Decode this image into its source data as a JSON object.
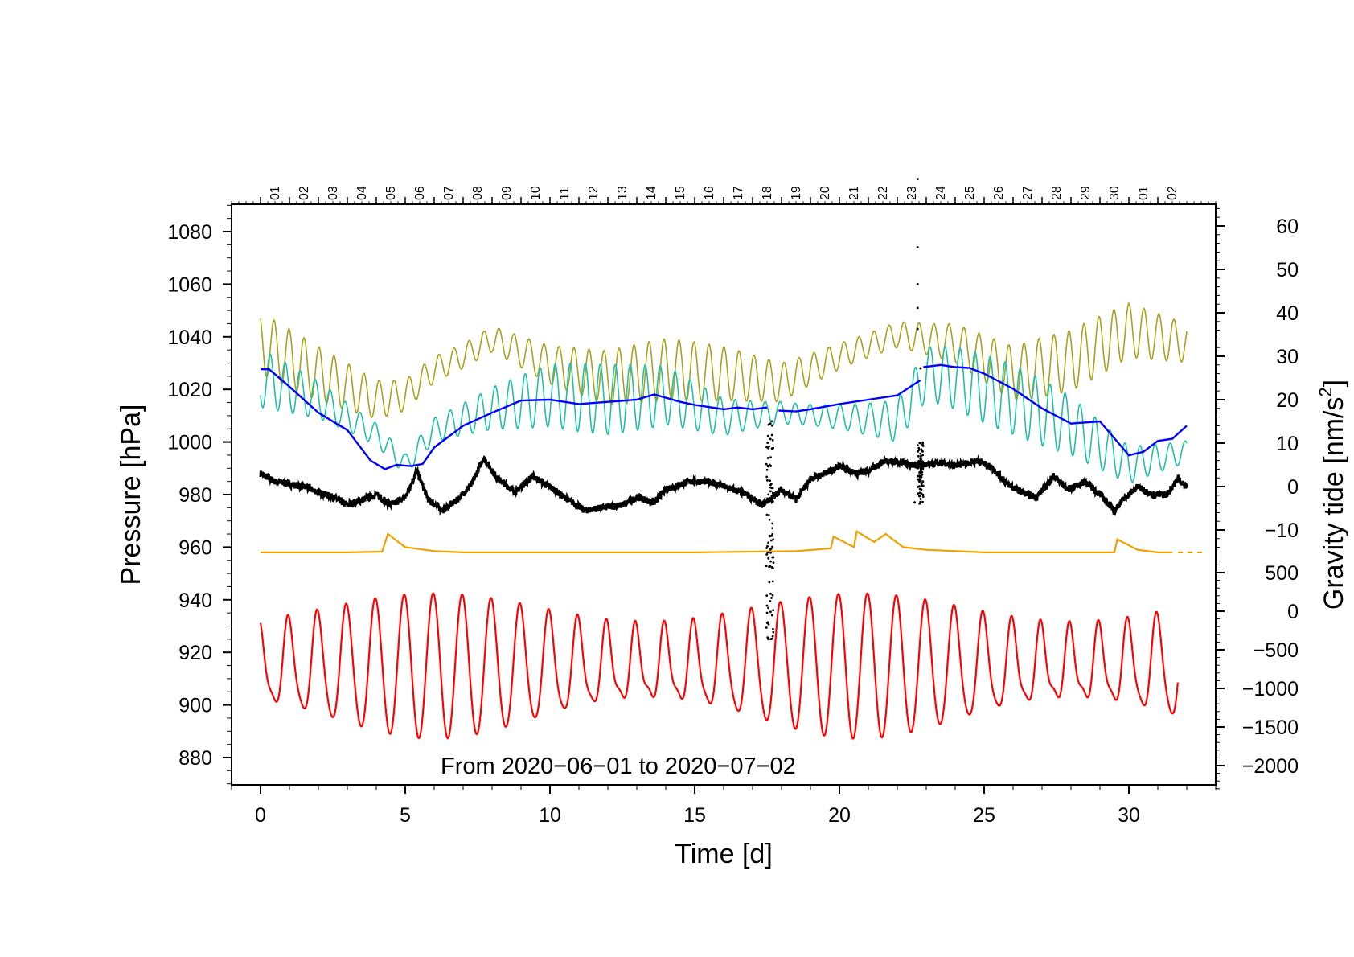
{
  "chart_data": {
    "type": "line",
    "title": "",
    "annotation": "From 2020−06−01 to 2020−07−02",
    "x_axis": {
      "label": "Time [d]",
      "range": [
        -1,
        33
      ],
      "ticks": [
        0,
        5,
        10,
        15,
        20,
        25,
        30
      ],
      "tick_labels": [
        "0",
        "5",
        "10",
        "15",
        "20",
        "25",
        "30"
      ]
    },
    "top_axis": {
      "day_labels": [
        "01",
        "02",
        "03",
        "04",
        "05",
        "06",
        "07",
        "08",
        "09",
        "10",
        "11",
        "12",
        "13",
        "14",
        "15",
        "16",
        "17",
        "18",
        "19",
        "20",
        "21",
        "22",
        "23",
        "24",
        "25",
        "26",
        "27",
        "28",
        "29",
        "30",
        "01",
        "02"
      ]
    },
    "y_left": {
      "label": "Pressure [hPa]",
      "range": [
        870,
        1090
      ],
      "ticks": [
        880,
        900,
        920,
        940,
        960,
        980,
        1000,
        1020,
        1040,
        1060,
        1080
      ],
      "tick_labels": [
        "880",
        "900",
        "920",
        "940",
        "960",
        "980",
        "1000",
        "1020",
        "1040",
        "1060",
        "1080"
      ]
    },
    "y_right_upper": {
      "label": "Gravity tide [nm/s2]",
      "label_parts": {
        "main": "Gravity tide [nm/s",
        "sup": "2",
        "end": "]"
      },
      "range": [
        -15,
        65
      ],
      "ticks": [
        60,
        50,
        40,
        30,
        20,
        10,
        0,
        -10
      ],
      "tick_labels": [
        "60",
        "50",
        "40",
        "30",
        "20",
        "10",
        "0",
        "−10"
      ]
    },
    "y_right_lower": {
      "ticks": [
        500,
        0,
        -500,
        -1000,
        -1500,
        -2000
      ],
      "tick_labels": [
        "500",
        "0",
        "−500",
        "−1000",
        "−1500",
        "−2000"
      ],
      "range_note": "red curve scale, roughly -2300 to 700 nm/s2"
    },
    "series": [
      {
        "name": "pressure (black)",
        "color": "#000000",
        "axis": "left",
        "points": [
          [
            0,
            988
          ],
          [
            0.5,
            985
          ],
          [
            1,
            984
          ],
          [
            1.5,
            983
          ],
          [
            2,
            981
          ],
          [
            2.5,
            979
          ],
          [
            3,
            976
          ],
          [
            3.5,
            978
          ],
          [
            4,
            980
          ],
          [
            4.5,
            976
          ],
          [
            5,
            979
          ],
          [
            5.4,
            989
          ],
          [
            5.8,
            978
          ],
          [
            6.3,
            974
          ],
          [
            6.8,
            978
          ],
          [
            7.3,
            984
          ],
          [
            7.7,
            994
          ],
          [
            8.2,
            986
          ],
          [
            8.8,
            981
          ],
          [
            9.4,
            987
          ],
          [
            10,
            983
          ],
          [
            10.5,
            979
          ],
          [
            11.2,
            974
          ],
          [
            11.8,
            975
          ],
          [
            12.5,
            976
          ],
          [
            13,
            979
          ],
          [
            13.6,
            977
          ],
          [
            14,
            982
          ],
          [
            14.8,
            985
          ],
          [
            15.5,
            985
          ],
          [
            16.3,
            982
          ],
          [
            16.8,
            980
          ],
          [
            17.3,
            976
          ],
          [
            17.7,
            979
          ],
          [
            18,
            982
          ],
          [
            18.5,
            978
          ],
          [
            19,
            986
          ],
          [
            19.5,
            988
          ],
          [
            20,
            991
          ],
          [
            20.6,
            988
          ],
          [
            21,
            989
          ],
          [
            21.6,
            993
          ],
          [
            22.2,
            992
          ],
          [
            22.8,
            991
          ],
          [
            23.5,
            992
          ],
          [
            24,
            991
          ],
          [
            24.8,
            993
          ],
          [
            25.3,
            990
          ],
          [
            25.8,
            984
          ],
          [
            26.3,
            981
          ],
          [
            26.8,
            979
          ],
          [
            27.4,
            987
          ],
          [
            27.9,
            982
          ],
          [
            28.5,
            985
          ],
          [
            29.1,
            979
          ],
          [
            29.5,
            974
          ],
          [
            29.8,
            978
          ],
          [
            30.3,
            983
          ],
          [
            30.8,
            980
          ],
          [
            31.3,
            980
          ],
          [
            31.7,
            986
          ],
          [
            32,
            983
          ]
        ]
      },
      {
        "name": "gravity tide (blue)",
        "color": "#0000ff",
        "axis": "right_upper",
        "points": [
          [
            0,
            27
          ],
          [
            0.3,
            27
          ],
          [
            1,
            23
          ],
          [
            2,
            17
          ],
          [
            3,
            13
          ],
          [
            3.8,
            6
          ],
          [
            4.3,
            4
          ],
          [
            4.7,
            5
          ],
          [
            5.2,
            4.7
          ],
          [
            5.6,
            5.2
          ],
          [
            6,
            9
          ],
          [
            7,
            14
          ],
          [
            8,
            17
          ],
          [
            9,
            19.8
          ],
          [
            10,
            20
          ],
          [
            11,
            19
          ],
          [
            12,
            19.5
          ],
          [
            13,
            20
          ],
          [
            13.6,
            21.2
          ],
          [
            14.5,
            19.5
          ],
          [
            15,
            18.8
          ],
          [
            16,
            17.8
          ],
          [
            16.5,
            18.2
          ],
          [
            17,
            17.8
          ],
          [
            17.5,
            18.2
          ],
          [
            17.55,
            null
          ],
          [
            17.9,
            17.5
          ],
          [
            18.5,
            17.3
          ],
          [
            19,
            17.8
          ],
          [
            20,
            19
          ],
          [
            21,
            20
          ],
          [
            22,
            21
          ],
          [
            22.8,
            24.5
          ],
          [
            22.82,
            null
          ],
          [
            22.9,
            27.5
          ],
          [
            23.5,
            28
          ],
          [
            24,
            27.5
          ],
          [
            24.5,
            27.3
          ],
          [
            25,
            26
          ],
          [
            26,
            22.5
          ],
          [
            27,
            18
          ],
          [
            28,
            14.5
          ],
          [
            29,
            15
          ],
          [
            30,
            7.2
          ],
          [
            30.5,
            8
          ],
          [
            31,
            10.5
          ],
          [
            31.5,
            11
          ],
          [
            32,
            14
          ]
        ]
      },
      {
        "name": "olive component",
        "color": "#aaa21c",
        "axis": "right_upper",
        "baseline_points": [
          [
            0,
            33
          ],
          [
            2,
            26
          ],
          [
            4,
            20
          ],
          [
            5,
            21
          ],
          [
            6,
            27
          ],
          [
            7,
            30
          ],
          [
            8,
            34
          ],
          [
            10,
            28
          ],
          [
            12,
            25
          ],
          [
            14,
            27
          ],
          [
            16,
            26
          ],
          [
            18,
            24
          ],
          [
            20,
            30
          ],
          [
            22,
            35
          ],
          [
            24,
            33
          ],
          [
            26,
            26
          ],
          [
            28,
            29
          ],
          [
            30,
            36
          ],
          [
            32,
            33
          ]
        ],
        "oscillation_amplitude": 7
      },
      {
        "name": "teal component",
        "color": "#20c0a8",
        "axis": "right_upper",
        "baseline_points": [
          [
            0,
            25
          ],
          [
            2,
            20
          ],
          [
            4,
            12
          ],
          [
            5,
            5
          ],
          [
            6,
            13
          ],
          [
            8,
            18
          ],
          [
            10,
            21
          ],
          [
            12,
            20
          ],
          [
            14,
            21
          ],
          [
            16,
            16
          ],
          [
            18,
            17
          ],
          [
            20,
            16
          ],
          [
            22,
            15
          ],
          [
            23,
            26
          ],
          [
            24,
            25
          ],
          [
            26,
            20
          ],
          [
            28,
            14
          ],
          [
            30,
            5
          ],
          [
            32,
            8
          ]
        ],
        "oscillation_amplitude": 8
      },
      {
        "name": "orange component",
        "color": "#f0a000",
        "axis": "left",
        "points": [
          [
            0,
            958
          ],
          [
            3,
            958
          ],
          [
            4.2,
            958.3
          ],
          [
            4.4,
            965
          ],
          [
            5,
            960
          ],
          [
            6,
            958.5
          ],
          [
            7,
            958
          ],
          [
            10,
            958
          ],
          [
            15,
            958
          ],
          [
            18.5,
            958.5
          ],
          [
            19.7,
            959.5
          ],
          [
            19.8,
            964
          ],
          [
            20.5,
            960
          ],
          [
            20.6,
            966
          ],
          [
            21.2,
            962
          ],
          [
            21.6,
            965
          ],
          [
            22.2,
            960
          ],
          [
            23,
            959
          ],
          [
            25,
            958
          ],
          [
            29.5,
            958
          ],
          [
            29.6,
            963
          ],
          [
            30.3,
            959
          ],
          [
            31,
            958
          ],
          [
            31.5,
            958
          ]
        ]
      },
      {
        "name": "lower tide (red)",
        "color": "#ff0000",
        "axis": "right_lower",
        "description": "Semidiurnal/diurnal tidal oscillation with amplitude envelope modulating over the lunar cycle"
      }
    ]
  }
}
